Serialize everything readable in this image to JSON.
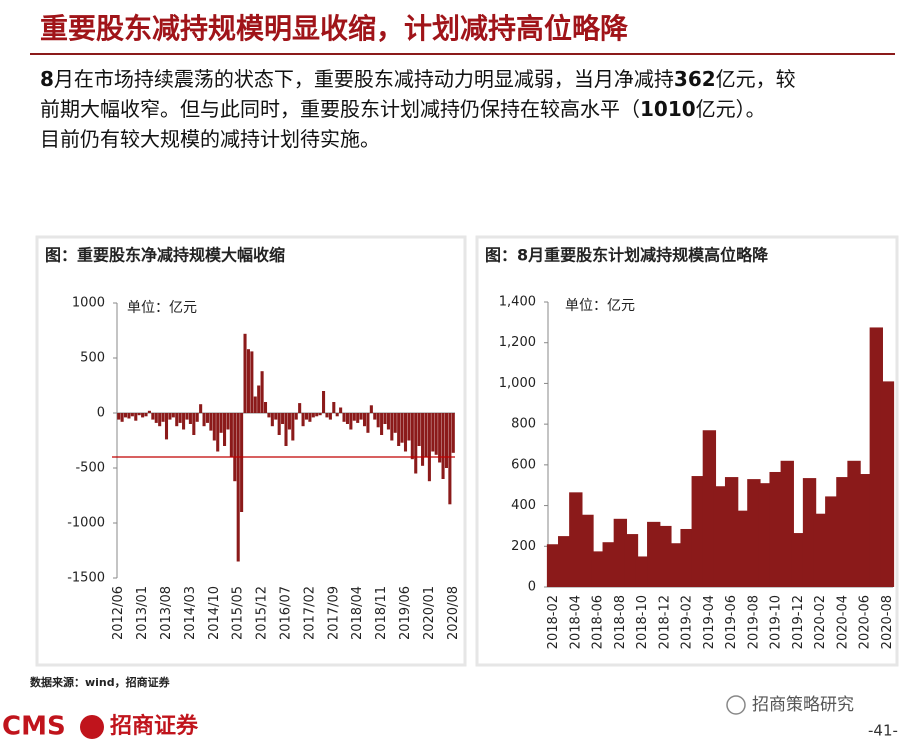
{
  "header": {
    "title": "重要股东减持规模明显收缩，计划减持高位略降"
  },
  "body": [
    {
      "text": "8",
      "bold": true
    },
    {
      "text": "月在市场持续震荡的状态下，重要股东减持动力明显减弱，当月净减持",
      "bold": false
    },
    {
      "text": "362",
      "bold": true
    },
    {
      "text": "亿元，较前期大幅收窄。但与此同时，重要股东计划减持仍保持在较高水平（",
      "bold": false
    },
    {
      "text": "1010",
      "bold": true
    },
    {
      "text": "亿元）。目前仍有较大规模的减持计划待实施。",
      "bold": false
    }
  ],
  "chart_data": [
    {
      "type": "bar",
      "title": "图：重要股东净减持规模大幅收缩",
      "unit": "单位：亿元",
      "color": "#8b1a1a",
      "categories": [
        "2012/06",
        null,
        null,
        null,
        null,
        null,
        null,
        "2013/01",
        null,
        null,
        null,
        null,
        null,
        null,
        "2013/08",
        null,
        null,
        null,
        null,
        null,
        null,
        "2014/03",
        null,
        null,
        null,
        null,
        null,
        null,
        "2014/10",
        null,
        null,
        null,
        null,
        null,
        null,
        "2015/05",
        null,
        null,
        null,
        null,
        null,
        null,
        "2015/12",
        null,
        null,
        null,
        null,
        null,
        null,
        "2016/07",
        null,
        null,
        null,
        null,
        null,
        null,
        "2017/02",
        null,
        null,
        null,
        null,
        null,
        null,
        "2017/09",
        null,
        null,
        null,
        null,
        null,
        null,
        "2018/04",
        null,
        null,
        null,
        null,
        null,
        null,
        "2018/11",
        null,
        null,
        null,
        null,
        null,
        null,
        "2019/06",
        null,
        null,
        null,
        null,
        null,
        null,
        "2020/01",
        null,
        null,
        null,
        null,
        null,
        null,
        "2020/08"
      ],
      "values": [
        -60,
        -80,
        -40,
        -50,
        -30,
        -70,
        -20,
        -40,
        -30,
        20,
        -60,
        -90,
        -120,
        -80,
        -240,
        -60,
        -40,
        -120,
        -90,
        -150,
        -60,
        -100,
        -200,
        -80,
        80,
        -120,
        -90,
        -160,
        -250,
        -350,
        -180,
        -300,
        -150,
        -400,
        -620,
        -1350,
        -900,
        720,
        580,
        560,
        150,
        250,
        380,
        100,
        -40,
        -120,
        -60,
        -200,
        -100,
        -300,
        -150,
        -250,
        -60,
        90,
        -120,
        -60,
        -80,
        -40,
        -30,
        -20,
        200,
        -40,
        -60,
        100,
        -30,
        50,
        -80,
        -100,
        -150,
        -70,
        -90,
        -60,
        -120,
        -180,
        70,
        -60,
        -130,
        -200,
        -100,
        -150,
        -250,
        -180,
        -300,
        -270,
        -350,
        -250,
        -420,
        -550,
        -300,
        -480,
        -400,
        -620,
        -350,
        -380,
        -450,
        -600,
        -500,
        -830,
        -362
      ],
      "ylim": [
        -1500,
        1000
      ],
      "yticks": [
        -1500,
        -1000,
        -500,
        0,
        500,
        1000
      ],
      "reference_line": -400,
      "reference_color": "#c00000"
    },
    {
      "type": "bar",
      "title": "图：8月重要股东计划减持规模高位略降",
      "unit": "单位：亿元",
      "color": "#8b1a1a",
      "categories": [
        "2018-02",
        null,
        "2018-04",
        null,
        "2018-06",
        null,
        "2018-08",
        null,
        "2018-10",
        null,
        "2018-12",
        null,
        "2019-02",
        null,
        "2019-04",
        null,
        "2019-06",
        null,
        "2019-08",
        null,
        "2019-10",
        null,
        "2019-12",
        null,
        "2020-02",
        null,
        "2020-04",
        null,
        "2020-06",
        null,
        "2020-08"
      ],
      "values": [
        210,
        250,
        465,
        355,
        175,
        220,
        335,
        260,
        150,
        320,
        300,
        215,
        285,
        545,
        770,
        495,
        540,
        375,
        530,
        510,
        565,
        620,
        265,
        535,
        360,
        445,
        540,
        620,
        555,
        1275,
        1010
      ],
      "ylim": [
        0,
        1400
      ],
      "yticks": [
        0,
        200,
        400,
        600,
        800,
        {
          "value": 1000,
          "label": "1,000"
        },
        {
          "value": 1200,
          "label": "1,200"
        },
        {
          "value": 1400,
          "label": "1,400"
        }
      ]
    }
  ],
  "footer": {
    "source": "数据来源：wind，招商证券",
    "logo": "CMS",
    "company": "招商证券",
    "watermark": "招商策略研究",
    "page": "-41-"
  }
}
